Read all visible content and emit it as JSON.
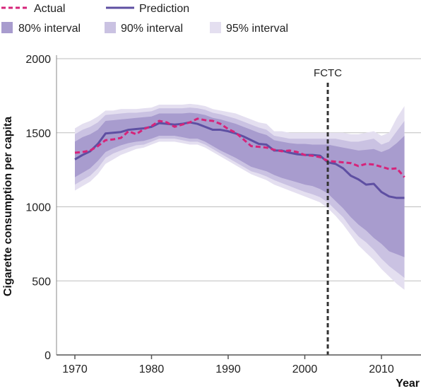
{
  "chart_data": {
    "type": "line",
    "xlabel": "Year",
    "ylabel": "Cigarette consumption per capita",
    "xlim": [
      1967,
      2015
    ],
    "ylim": [
      0,
      2000
    ],
    "xticks": [
      1970,
      1980,
      1990,
      2000,
      2010
    ],
    "yticks": [
      0,
      500,
      1000,
      1500,
      2000
    ],
    "grid": "horizontal",
    "x": [
      1970,
      1971,
      1972,
      1973,
      1974,
      1975,
      1976,
      1977,
      1978,
      1979,
      1980,
      1981,
      1982,
      1983,
      1984,
      1985,
      1986,
      1987,
      1988,
      1989,
      1990,
      1991,
      1992,
      1993,
      1994,
      1995,
      1996,
      1997,
      1998,
      1999,
      2000,
      2001,
      2002,
      2003,
      2004,
      2005,
      2006,
      2007,
      2008,
      2009,
      2010,
      2011,
      2012,
      2013
    ],
    "series": [
      {
        "name": "Actual",
        "style": "dashed",
        "color": "#d6247a",
        "values": [
          1365,
          1370,
          1380,
          1410,
          1450,
          1455,
          1465,
          1510,
          1490,
          1525,
          1545,
          1580,
          1570,
          1540,
          1555,
          1570,
          1595,
          1585,
          1580,
          1560,
          1525,
          1500,
          1455,
          1410,
          1405,
          1400,
          1385,
          1375,
          1380,
          1370,
          1350,
          1345,
          1335,
          1310,
          1305,
          1300,
          1295,
          1275,
          1290,
          1285,
          1270,
          1255,
          1260,
          1200
        ]
      },
      {
        "name": "Prediction",
        "style": "solid",
        "color": "#5e4fa2",
        "values": [
          1320,
          1350,
          1375,
          1425,
          1495,
          1500,
          1505,
          1520,
          1525,
          1530,
          1540,
          1565,
          1560,
          1555,
          1560,
          1570,
          1560,
          1540,
          1520,
          1520,
          1510,
          1495,
          1475,
          1450,
          1425,
          1420,
          1380,
          1380,
          1365,
          1355,
          1350,
          1350,
          1345,
          1300,
          1290,
          1260,
          1210,
          1185,
          1150,
          1155,
          1100,
          1070,
          1060,
          1060
        ]
      }
    ],
    "intervals": [
      {
        "name": "95% interval",
        "color": "#e4dff0",
        "lower": [
          1110,
          1140,
          1170,
          1220,
          1290,
          1320,
          1350,
          1370,
          1390,
          1400,
          1420,
          1440,
          1440,
          1440,
          1430,
          1420,
          1420,
          1400,
          1370,
          1340,
          1310,
          1280,
          1250,
          1220,
          1200,
          1180,
          1150,
          1130,
          1110,
          1090,
          1070,
          1050,
          1030,
          990,
          940,
          880,
          810,
          740,
          690,
          640,
          580,
          530,
          480,
          440
        ],
        "upper": [
          1530,
          1560,
          1580,
          1610,
          1650,
          1650,
          1660,
          1660,
          1660,
          1665,
          1670,
          1690,
          1690,
          1690,
          1690,
          1695,
          1690,
          1680,
          1660,
          1650,
          1640,
          1630,
          1610,
          1590,
          1570,
          1560,
          1510,
          1510,
          1500,
          1500,
          1500,
          1500,
          1500,
          1500,
          1500,
          1500,
          1490,
          1490,
          1500,
          1510,
          1480,
          1500,
          1600,
          1680
        ]
      },
      {
        "name": "90% interval",
        "color": "#cac2e2",
        "lower": [
          1150,
          1180,
          1210,
          1260,
          1330,
          1360,
          1380,
          1400,
          1415,
          1420,
          1440,
          1460,
          1460,
          1460,
          1450,
          1440,
          1440,
          1420,
          1390,
          1360,
          1330,
          1300,
          1270,
          1240,
          1225,
          1205,
          1180,
          1160,
          1140,
          1120,
          1100,
          1085,
          1065,
          1030,
          980,
          930,
          860,
          800,
          760,
          710,
          650,
          600,
          560,
          520
        ],
        "upper": [
          1490,
          1520,
          1540,
          1570,
          1620,
          1625,
          1630,
          1635,
          1635,
          1640,
          1645,
          1665,
          1665,
          1665,
          1665,
          1670,
          1665,
          1655,
          1635,
          1625,
          1610,
          1595,
          1575,
          1555,
          1535,
          1520,
          1480,
          1470,
          1460,
          1460,
          1460,
          1460,
          1460,
          1460,
          1460,
          1450,
          1440,
          1440,
          1450,
          1460,
          1420,
          1440,
          1510,
          1580
        ]
      },
      {
        "name": "80% interval",
        "color": "#a89cce",
        "lower": [
          1200,
          1230,
          1260,
          1310,
          1370,
          1395,
          1415,
          1430,
          1440,
          1445,
          1460,
          1480,
          1480,
          1480,
          1470,
          1460,
          1460,
          1440,
          1410,
          1380,
          1355,
          1330,
          1300,
          1270,
          1255,
          1240,
          1215,
          1195,
          1180,
          1165,
          1150,
          1140,
          1120,
          1090,
          1040,
          990,
          930,
          880,
          840,
          790,
          750,
          700,
          680,
          660
        ],
        "upper": [
          1440,
          1470,
          1490,
          1520,
          1580,
          1585,
          1590,
          1595,
          1600,
          1605,
          1610,
          1630,
          1630,
          1630,
          1630,
          1635,
          1630,
          1620,
          1600,
          1590,
          1575,
          1560,
          1540,
          1520,
          1500,
          1485,
          1450,
          1440,
          1430,
          1425,
          1425,
          1420,
          1420,
          1420,
          1410,
          1400,
          1390,
          1380,
          1385,
          1390,
          1370,
          1390,
          1430,
          1480
        ]
      }
    ],
    "annotations": [
      {
        "label": "FCTC",
        "x": 2003,
        "style": "dashed-vertical-line"
      }
    ],
    "legend": {
      "placement": "top",
      "entries": [
        {
          "label": "Actual",
          "kind": "dashed-line",
          "color": "#d6247a"
        },
        {
          "label": "Prediction",
          "kind": "solid-line",
          "color": "#5e4fa2"
        },
        {
          "label": "80% interval",
          "kind": "swatch",
          "color": "#a89cce"
        },
        {
          "label": "90% interval",
          "kind": "swatch",
          "color": "#cac2e2"
        },
        {
          "label": "95% interval",
          "kind": "swatch",
          "color": "#e4dff0"
        }
      ]
    },
    "colors": {
      "background": "#ffffff",
      "grid": "#bdbdbd",
      "axis": "#888888",
      "annotation_line": "#333333"
    }
  }
}
